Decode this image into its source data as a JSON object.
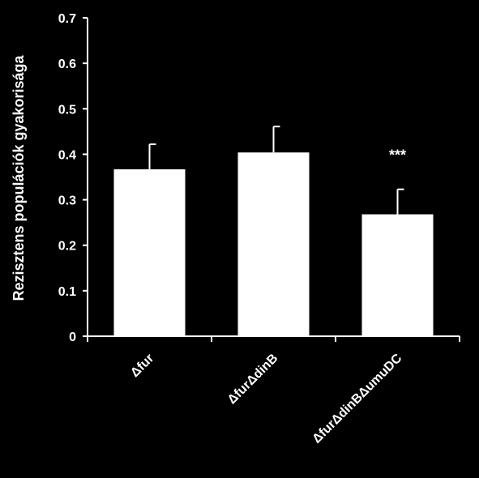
{
  "chart_data": {
    "type": "bar",
    "title": "",
    "xlabel": "",
    "ylabel": "Rezisztens populációk  gyakorisága",
    "ylim": [
      0,
      0.7
    ],
    "yticks": [
      "0",
      "0.1",
      "0.2",
      "0.3",
      "0.4",
      "0.5",
      "0.6",
      "0.7"
    ],
    "categories": [
      "Δfur",
      "ΔfurΔdinB",
      "ΔfurΔdinBΔumuDC"
    ],
    "values": [
      0.367,
      0.404,
      0.268
    ],
    "error_upper": [
      0.055,
      0.057,
      0.055
    ],
    "annotations": [
      "",
      "",
      "***"
    ],
    "grid": false,
    "legend": "none"
  },
  "colors": {
    "background": "#000000",
    "bar": "#ffffff",
    "axis": "#ffffff",
    "text": "#ffffff"
  }
}
